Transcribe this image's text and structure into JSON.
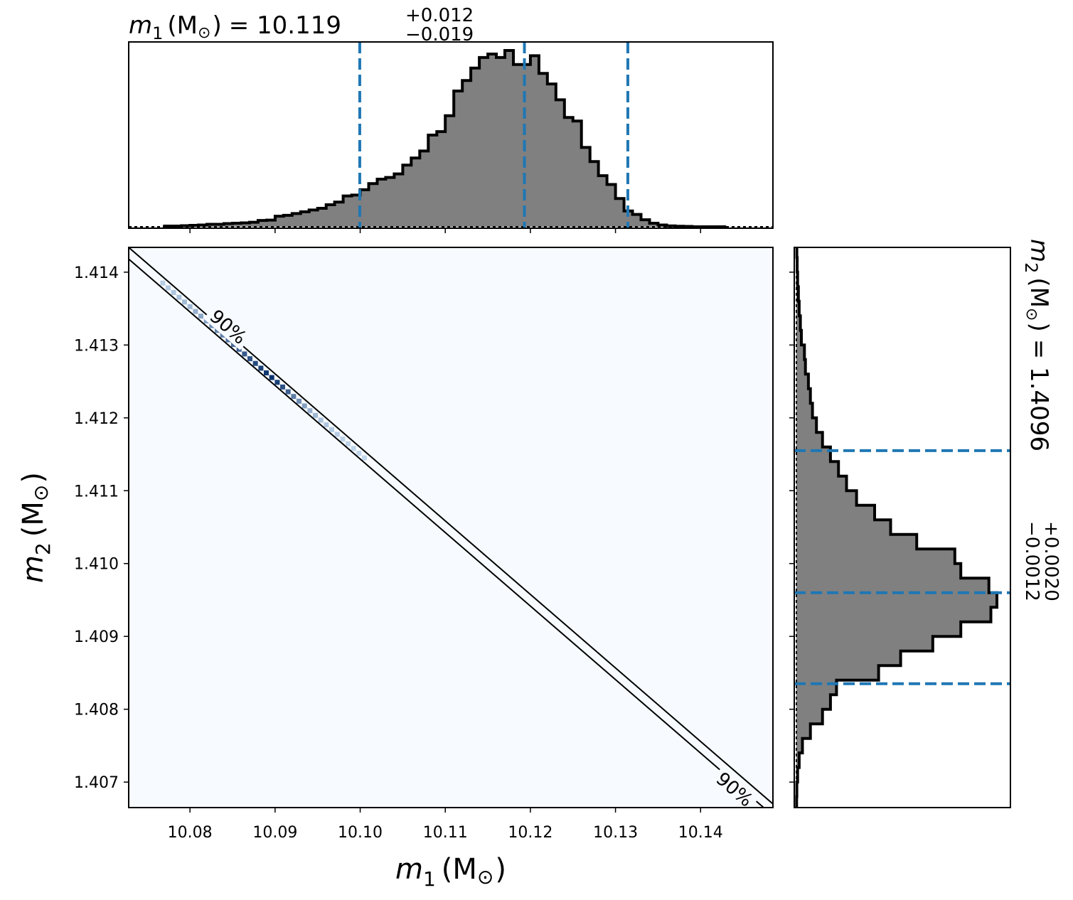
{
  "chart_data": [
    {
      "type": "step-histogram",
      "panel": "top-marginal",
      "title": {
        "var": "m",
        "sub": "1",
        "unit": "(M",
        "sun": "⊙",
        "close": ")",
        "eq": "= 10.119",
        "plus": "+0.012",
        "minus": "−0.019"
      },
      "x": [
        10.0775,
        10.0785,
        10.0795,
        10.0805,
        10.0815,
        10.0825,
        10.0835,
        10.0845,
        10.0855,
        10.0865,
        10.0875,
        10.0885,
        10.0895,
        10.0905,
        10.0915,
        10.0925,
        10.0935,
        10.0945,
        10.0955,
        10.0965,
        10.0975,
        10.0985,
        10.0995,
        10.1005,
        10.1015,
        10.1025,
        10.1035,
        10.1045,
        10.1055,
        10.1065,
        10.1075,
        10.1085,
        10.1095,
        10.1105,
        10.1115,
        10.1125,
        10.1135,
        10.1145,
        10.1155,
        10.1165,
        10.1175,
        10.1185,
        10.1195,
        10.1205,
        10.1215,
        10.1225,
        10.1235,
        10.1245,
        10.1255,
        10.1265,
        10.1275,
        10.1285,
        10.1295,
        10.1305,
        10.1315,
        10.1325,
        10.1335,
        10.1345,
        10.1355,
        10.1365,
        10.1375,
        10.1385,
        10.1395,
        10.1405,
        10.1415,
        10.1425
      ],
      "values": [
        0.004,
        0.004,
        0.006,
        0.008,
        0.01,
        0.014,
        0.014,
        0.018,
        0.02,
        0.022,
        0.026,
        0.036,
        0.038,
        0.06,
        0.065,
        0.075,
        0.085,
        0.095,
        0.105,
        0.125,
        0.14,
        0.175,
        0.18,
        0.21,
        0.245,
        0.27,
        0.28,
        0.3,
        0.35,
        0.39,
        0.43,
        0.52,
        0.54,
        0.63,
        0.77,
        0.83,
        0.9,
        0.96,
        0.98,
        0.96,
        1.0,
        0.92,
        0.92,
        0.97,
        0.87,
        0.81,
        0.72,
        0.62,
        0.6,
        0.45,
        0.37,
        0.29,
        0.24,
        0.16,
        0.09,
        0.07,
        0.04,
        0.02,
        0.01,
        0.005,
        0.003,
        0.002,
        0.0,
        0.0,
        0.0,
        0.0
      ],
      "quantile_lines": [
        10.09995,
        10.1193,
        10.13145
      ],
      "xlim": [
        10.0728,
        10.1485
      ]
    },
    {
      "type": "heatmap",
      "panel": "joint",
      "xlabel": {
        "var": "m",
        "sub": "1",
        "unit": "(M",
        "sun": "⊙",
        "close": ")"
      },
      "ylabel": {
        "var": "m",
        "sub": "2",
        "unit": "(M",
        "sun": "⊙",
        "close": ")"
      },
      "xlim": [
        10.0728,
        10.1485
      ],
      "ylim": [
        1.40665,
        1.41434
      ],
      "xticks": [
        10.08,
        10.09,
        10.1,
        10.11,
        10.12,
        10.13,
        10.14
      ],
      "xtick_labels": [
        "10.08",
        "10.09",
        "10.10",
        "10.11",
        "10.12",
        "10.13",
        "10.14"
      ],
      "yticks": [
        1.407,
        1.408,
        1.409,
        1.41,
        1.411,
        1.412,
        1.413,
        1.414
      ],
      "ytick_labels": [
        "1.407",
        "1.408",
        "1.409",
        "1.410",
        "1.411",
        "1.412",
        "1.413",
        "1.414"
      ],
      "ridge": {
        "m1": [
          10.0768,
          10.1005
        ],
        "m2": [
          1.41385,
          1.41145
        ]
      },
      "density_cells": [
        0.08,
        0.1,
        0.12,
        0.15,
        0.18,
        0.2,
        0.25,
        0.3,
        0.35,
        0.45,
        0.5,
        0.55,
        0.6,
        0.65,
        0.7,
        0.75,
        0.8,
        0.85,
        0.9,
        0.95,
        1.0,
        0.9,
        0.8,
        0.7,
        0.55,
        0.45,
        0.35,
        0.25,
        0.2,
        0.15,
        0.12,
        0.1,
        0.08,
        0.06,
        0.05,
        0.04,
        0.03,
        0.02
      ],
      "contours": [
        {
          "label": "90%",
          "x": [
            10.0728,
            10.1485
          ],
          "y": [
            1.41434,
            1.4067
          ]
        },
        {
          "label": "90%",
          "x": [
            10.0728,
            10.1485
          ],
          "y": [
            1.41418,
            1.40654
          ]
        }
      ],
      "contour_labels": [
        {
          "text": "90%",
          "x": 10.0845,
          "y": 1.41325
        },
        {
          "text": "90%",
          "x": 10.144,
          "y": 1.4069
        }
      ]
    },
    {
      "type": "step-histogram",
      "panel": "right-marginal",
      "title": {
        "var": "m",
        "sub": "2",
        "unit": "(M",
        "sun": "⊙",
        "close": ")",
        "eq": "= 1.4096",
        "plus": "+0.0020",
        "minus": "−0.0012"
      },
      "y": [
        1.4143,
        1.4141,
        1.4139,
        1.4137,
        1.4135,
        1.4133,
        1.4131,
        1.4129,
        1.4127,
        1.4125,
        1.4123,
        1.4121,
        1.4119,
        1.4117,
        1.4115,
        1.4113,
        1.4111,
        1.4109,
        1.4107,
        1.4105,
        1.4103,
        1.4101,
        1.4099,
        1.4097,
        1.4095,
        1.4093,
        1.4091,
        1.4089,
        1.4087,
        1.4085,
        1.4083,
        1.4081,
        1.4079,
        1.4077,
        1.4075,
        1.4073,
        1.4071,
        1.4069,
        1.4067
      ],
      "values": [
        0.002,
        0.004,
        0.006,
        0.01,
        0.014,
        0.02,
        0.025,
        0.04,
        0.045,
        0.06,
        0.07,
        0.08,
        0.1,
        0.13,
        0.17,
        0.21,
        0.25,
        0.3,
        0.39,
        0.47,
        0.6,
        0.79,
        0.82,
        0.96,
        1.0,
        0.97,
        0.82,
        0.68,
        0.52,
        0.41,
        0.2,
        0.17,
        0.13,
        0.07,
        0.03,
        0.014,
        0.006,
        0.002,
        0.001
      ],
      "quantile_lines": [
        1.40835,
        1.4096,
        1.41155
      ],
      "ylim": [
        1.40665,
        1.41434
      ]
    }
  ],
  "colors": {
    "hist_fill": "#808080",
    "hist_edge": "#000000",
    "quantile": "#1f77b4",
    "heat_bg": "#f7fbff",
    "heat_low": "#c6dbef",
    "heat_high": "#08306b"
  }
}
